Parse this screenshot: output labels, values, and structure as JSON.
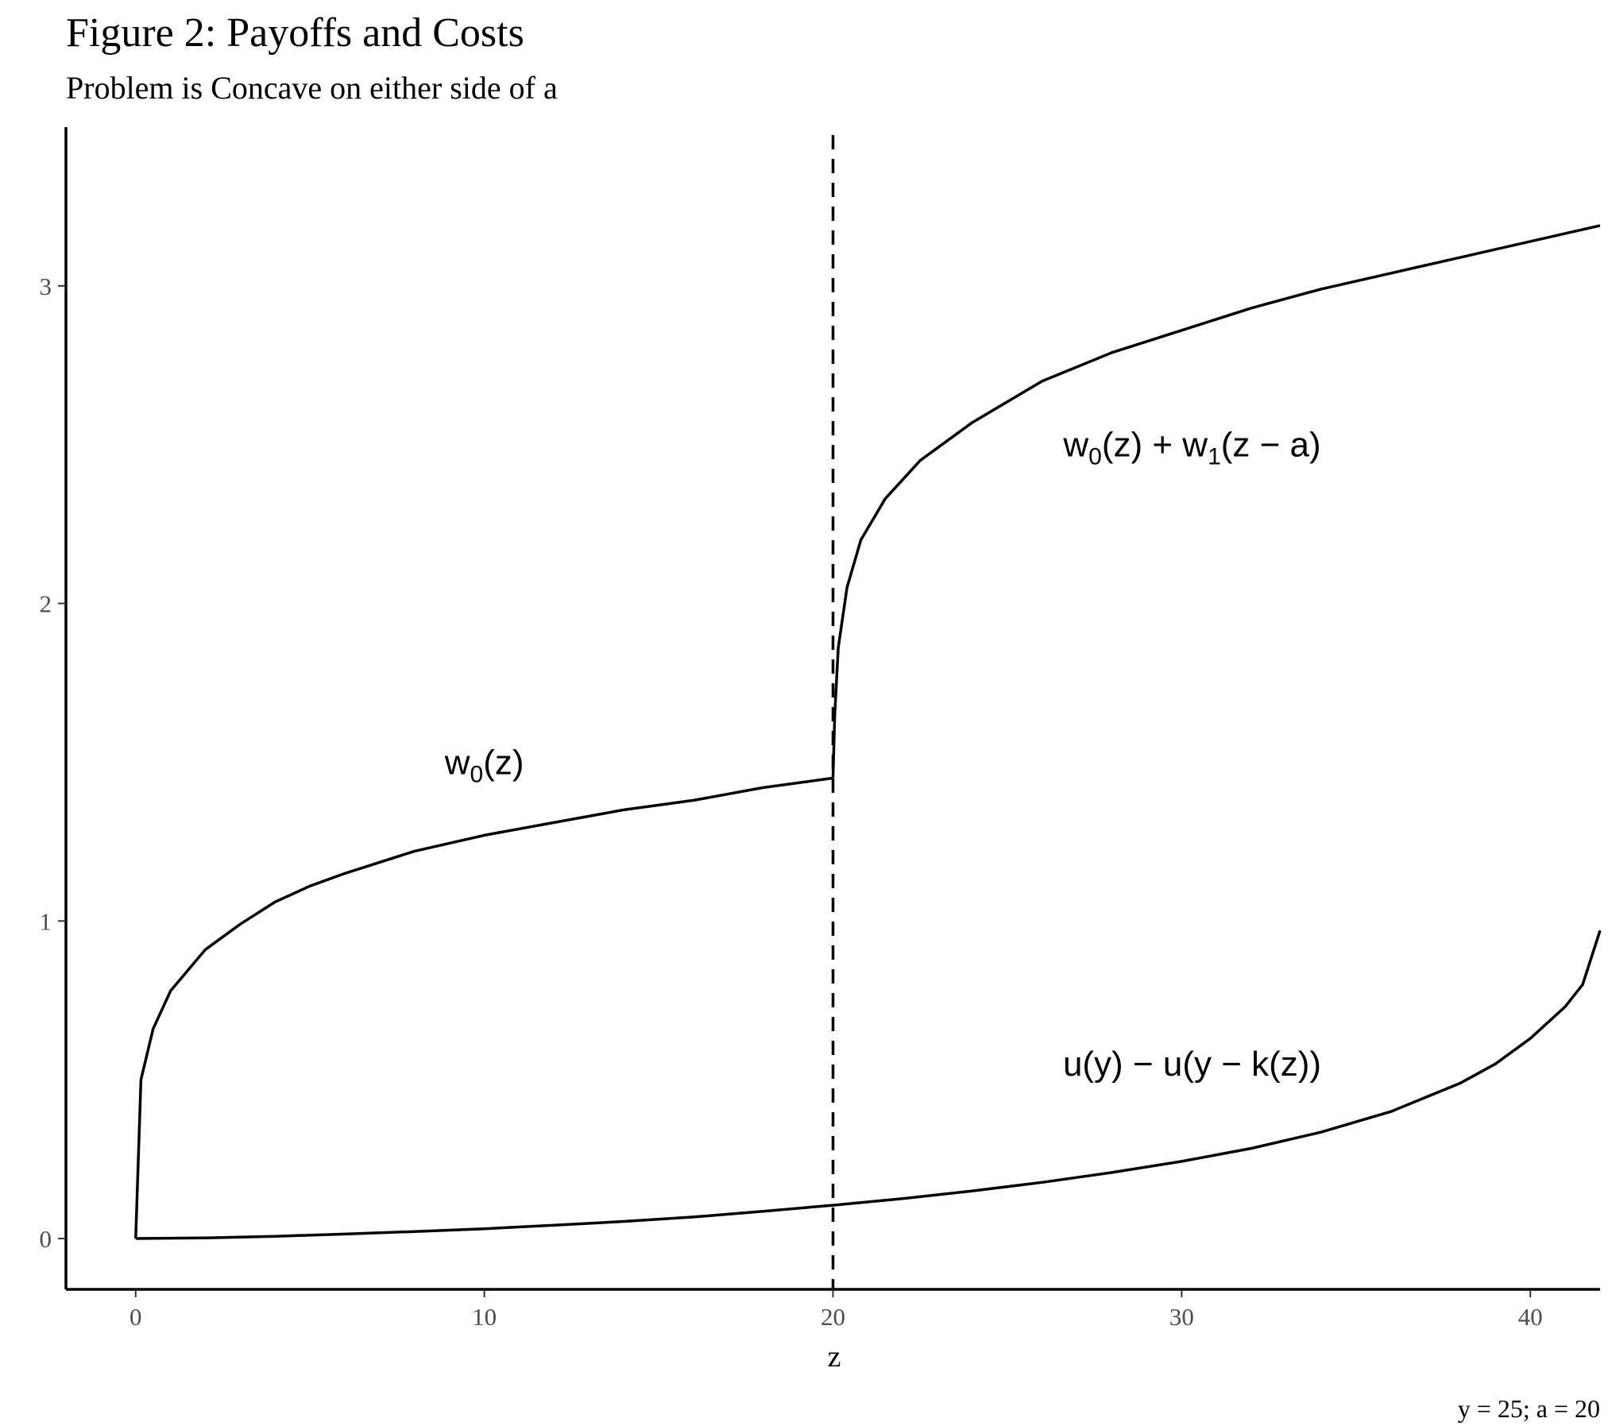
{
  "chart_data": {
    "type": "line",
    "title": "Figure 2: Payoffs and Costs",
    "subtitle": "Problem is Concave on either side of a",
    "xlabel": "z",
    "ylabel": "",
    "caption": "y = 25; a = 20",
    "xlim": [
      -2,
      42
    ],
    "ylim": [
      -0.16,
      3.5
    ],
    "x_ticks": [
      0,
      10,
      20,
      30,
      40
    ],
    "x_tick_labels": [
      "0",
      "10",
      "20",
      "30",
      "40"
    ],
    "y_ticks": [
      0,
      1,
      2,
      3
    ],
    "y_tick_labels": [
      "0",
      "1",
      "2",
      "3"
    ],
    "grid": false,
    "vline": {
      "x": 20,
      "style": "dashed"
    },
    "series": [
      {
        "x": [
          0,
          0.15,
          0.5,
          1,
          2,
          3,
          4,
          5,
          6,
          8,
          10,
          12,
          14,
          16,
          18,
          20
        ],
        "y": [
          0,
          0.5,
          0.66,
          0.78,
          0.91,
          0.99,
          1.06,
          1.11,
          1.15,
          1.22,
          1.27,
          1.31,
          1.35,
          1.38,
          1.42,
          1.45
        ]
      },
      {
        "x": [
          20,
          20.05,
          20.15,
          20.4,
          20.8,
          21.5,
          22.5,
          24,
          26,
          28,
          30,
          32,
          34,
          36,
          38,
          40,
          42
        ],
        "y": [
          1.45,
          1.65,
          1.86,
          2.05,
          2.2,
          2.33,
          2.45,
          2.57,
          2.7,
          2.79,
          2.86,
          2.93,
          2.99,
          3.04,
          3.09,
          3.14,
          3.19
        ]
      },
      {
        "x": [
          0,
          2,
          4,
          6,
          8,
          10,
          12,
          14,
          16,
          18,
          20,
          22,
          24,
          26,
          28,
          30,
          32,
          34,
          36,
          38,
          39,
          40,
          41,
          41.5,
          42
        ],
        "y": [
          0,
          0.002,
          0.007,
          0.014,
          0.022,
          0.031,
          0.042,
          0.054,
          0.068,
          0.086,
          0.105,
          0.126,
          0.15,
          0.177,
          0.208,
          0.243,
          0.284,
          0.335,
          0.4,
          0.49,
          0.55,
          0.63,
          0.73,
          0.8,
          0.97
        ]
      }
    ],
    "annotations": [
      {
        "x": 10,
        "y": 1.5,
        "base": "w",
        "sub": "0",
        "rest": "(z)"
      },
      {
        "x": 30.3,
        "y": 2.5,
        "base": "w",
        "sub": "0",
        "rest": "(z) + w",
        "sub2": "1",
        "rest2": "(z − a)"
      },
      {
        "x": 30.3,
        "y": 0.55,
        "base": "u(y) − u(y − k(z))"
      }
    ]
  }
}
